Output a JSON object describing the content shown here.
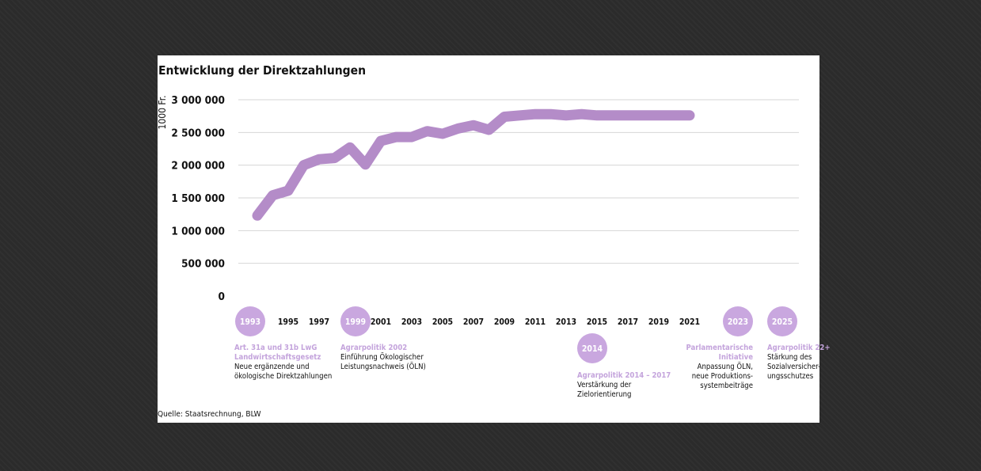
{
  "chart_data": {
    "type": "line",
    "title": "Entwicklung der Direktzahlungen",
    "ylabel": "1000 Fr.",
    "ylim": [
      0,
      3000000
    ],
    "y_ticks": [
      "0",
      "500 000",
      "1 000 000",
      "1 500 000",
      "2 000 000",
      "2 500 000",
      "3 000 000"
    ],
    "x_ticks": [
      "1995",
      "1997",
      "2001",
      "2003",
      "2005",
      "2007",
      "2009",
      "2011",
      "2013",
      "2015",
      "2017",
      "2019",
      "2021"
    ],
    "highlight_years": [
      "1993",
      "1999",
      "2014",
      "2023",
      "2025"
    ],
    "series": [
      {
        "x": [
          1993,
          1994,
          1995,
          1996,
          1997,
          1998,
          1999,
          2000,
          2001,
          2002,
          2003,
          2004,
          2005,
          2006,
          2007,
          2008,
          2009,
          2010,
          2011,
          2012,
          2013,
          2014,
          2015,
          2016,
          2017,
          2018,
          2019,
          2020,
          2021
        ],
        "values": [
          1230000,
          1540000,
          1610000,
          2000000,
          2090000,
          2110000,
          2270000,
          2010000,
          2370000,
          2430000,
          2430000,
          2520000,
          2480000,
          2560000,
          2610000,
          2540000,
          2740000,
          2760000,
          2780000,
          2780000,
          2760000,
          2780000,
          2760000,
          2760000,
          2760000,
          2760000,
          2760000,
          2760000,
          2760000
        ]
      }
    ],
    "line_color": "#b48cc8",
    "circle_color": "#c9a7df",
    "annotations": [
      {
        "year": "1993",
        "head": [
          "Art. 31a und 31b LwG",
          "Landwirtschaftsgesetz"
        ],
        "body": [
          "Neue ergänzende und",
          "ökologische Direktzahlungen"
        ]
      },
      {
        "year": "1999",
        "head": [
          "Agrarpolitik 2002"
        ],
        "body": [
          "Einführung Ökologischer",
          "Leistungsnachweis (ÖLN)"
        ]
      },
      {
        "year": "2014",
        "head": [
          "Agrarpolitik 2014 – 2017"
        ],
        "body": [
          "Verstärkung der",
          "Zielorientierung"
        ]
      },
      {
        "year": "2023",
        "head": [
          "Parlamentarische",
          "Initiative"
        ],
        "body": [
          "Anpassung ÖLN,",
          "neue Produktions-",
          "systembeiträge"
        ]
      },
      {
        "year": "2025",
        "head": [
          "Agrarpolitik 22+"
        ],
        "body": [
          "Stärkung des",
          "Sozialversicher-",
          "ungsschutzes"
        ]
      }
    ],
    "source": "Quelle: Staatsrechnung, BLW",
    "grid": true
  }
}
